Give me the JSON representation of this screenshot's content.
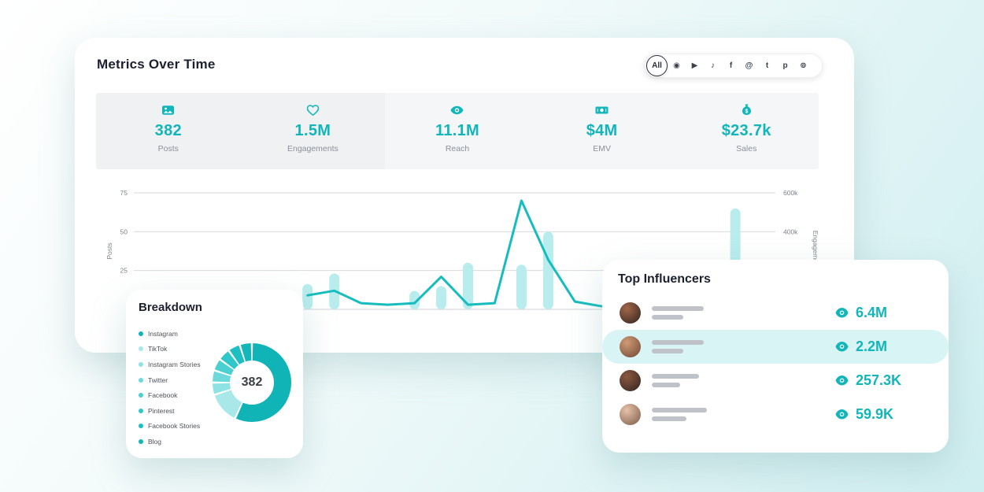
{
  "colors": {
    "accent": "#12b6ba",
    "bar_fill": "#b9eded",
    "row_highlight": "#d9f4f4"
  },
  "metrics_card": {
    "title": "Metrics Over Time",
    "filters": {
      "all_label": "All",
      "platforms": [
        {
          "name": "instagram",
          "glyph": "◉"
        },
        {
          "name": "youtube",
          "glyph": "▶"
        },
        {
          "name": "tiktok",
          "glyph": "♪"
        },
        {
          "name": "facebook",
          "glyph": "f"
        },
        {
          "name": "threads",
          "glyph": "@"
        },
        {
          "name": "twitter",
          "glyph": "t"
        },
        {
          "name": "pinterest",
          "glyph": "p"
        },
        {
          "name": "rss",
          "glyph": "⊚"
        }
      ]
    },
    "stats": [
      {
        "icon": "image",
        "value": "382",
        "label": "Posts"
      },
      {
        "icon": "heart",
        "value": "1.5M",
        "label": "Engagements"
      },
      {
        "icon": "eye",
        "value": "11.1M",
        "label": "Reach"
      },
      {
        "icon": "cash",
        "value": "$4M",
        "label": "EMV"
      },
      {
        "icon": "bag",
        "value": "$23.7k",
        "label": "Sales"
      }
    ]
  },
  "chart_data": {
    "type": "combo",
    "x_slots": 24,
    "series": [
      {
        "name": "Posts",
        "type": "line",
        "axis": "left",
        "color": "#17bcbf",
        "values": [
          null,
          null,
          null,
          null,
          null,
          null,
          9,
          12,
          4,
          3,
          4,
          21,
          3,
          4,
          70,
          32,
          5,
          2,
          2,
          2,
          2,
          2,
          2,
          2
        ]
      },
      {
        "name": "Engagements",
        "type": "bar",
        "axis": "right",
        "color": "#b9eded",
        "values_k": [
          0,
          0,
          0,
          0,
          0,
          0,
          130,
          185,
          0,
          0,
          95,
          120,
          240,
          0,
          230,
          400,
          0,
          0,
          0,
          0,
          0,
          0,
          520,
          0
        ]
      }
    ],
    "left_axis": {
      "label": "Posts",
      "ticks": [
        25,
        50,
        75
      ],
      "max": 75
    },
    "right_axis": {
      "label": "Engagements",
      "ticks_k": [
        400,
        600
      ],
      "max_k": 600
    }
  },
  "breakdown_card": {
    "title": "Breakdown",
    "center_value": "382",
    "segments": [
      {
        "label": "Instagram",
        "value": 57,
        "color": "#10b4b7"
      },
      {
        "label": "TikTok",
        "value": 13,
        "color": "#a9e8e9"
      },
      {
        "label": "Instagram Stories",
        "value": 5,
        "color": "#8fe2e4"
      },
      {
        "label": "Twitter",
        "value": 5,
        "color": "#6cd9db"
      },
      {
        "label": "Facebook",
        "value": 5,
        "color": "#4bd0d2"
      },
      {
        "label": "Pinterest",
        "value": 5,
        "color": "#30c7ca"
      },
      {
        "label": "Facebook Stories",
        "value": 5,
        "color": "#1dbfc2"
      },
      {
        "label": "Blog",
        "value": 5,
        "color": "#12b7ba"
      }
    ]
  },
  "influencers_card": {
    "title": "Top Influencers",
    "rows": [
      {
        "views": "6.4M",
        "highlighted": false
      },
      {
        "views": "2.2M",
        "highlighted": true
      },
      {
        "views": "257.3K",
        "highlighted": false
      },
      {
        "views": "59.9K",
        "highlighted": false
      }
    ]
  }
}
